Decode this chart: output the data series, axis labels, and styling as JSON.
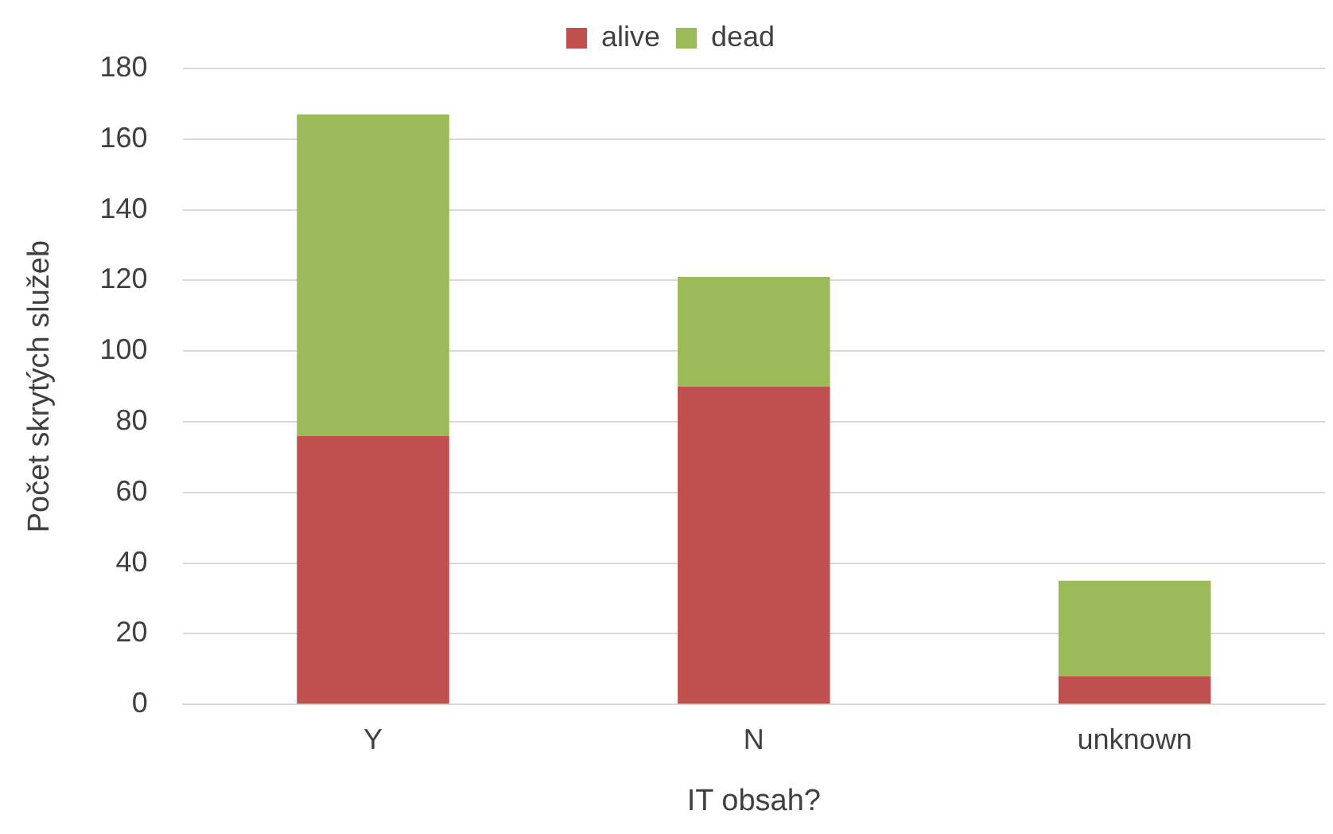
{
  "chart_data": {
    "type": "bar",
    "stacked": true,
    "xlabel": "IT obsah?",
    "ylabel": "Počet skrytých služeb",
    "categories": [
      "Y",
      "N",
      "unknown"
    ],
    "series": [
      {
        "name": "alive",
        "color": "#c0504d",
        "values": [
          76,
          90,
          8
        ]
      },
      {
        "name": "dead",
        "color": "#9bbb59",
        "values": [
          91,
          31,
          27
        ]
      }
    ],
    "ylim": [
      0,
      180
    ],
    "yticks": [
      0,
      20,
      40,
      60,
      80,
      100,
      120,
      140,
      160,
      180
    ],
    "grid": "y",
    "legend": "top"
  }
}
